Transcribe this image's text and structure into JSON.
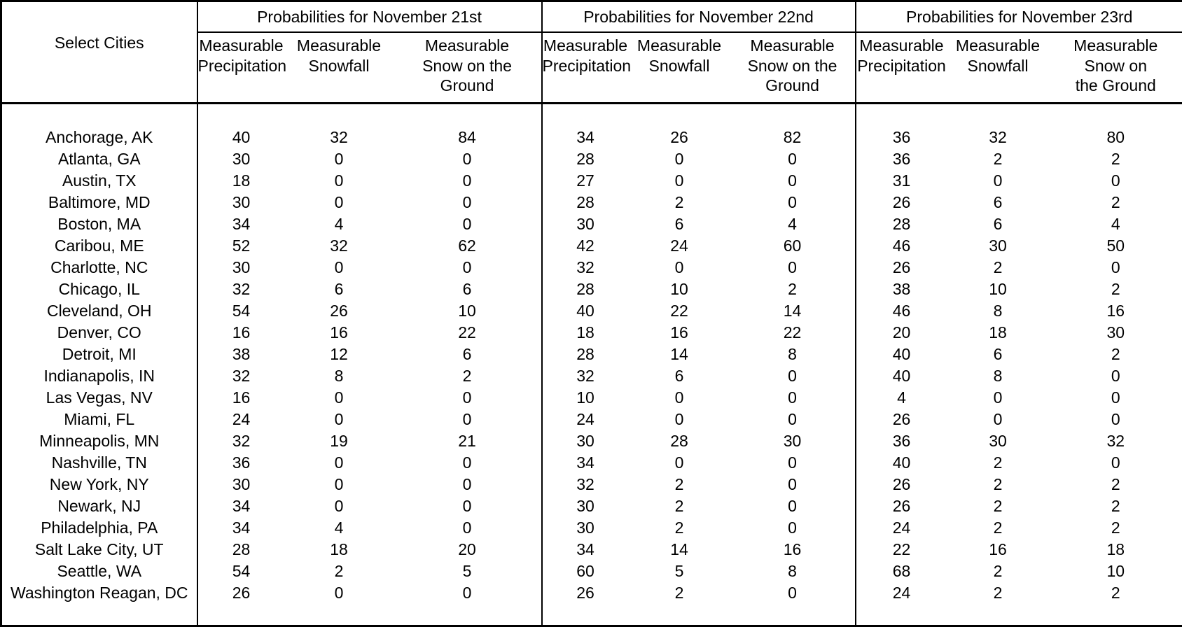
{
  "colors": {
    "text": "#000000",
    "background": "#ffffff",
    "border": "#000000"
  },
  "chart_data": {
    "type": "table",
    "row_header": "Select Cities",
    "column_groups": [
      {
        "title": "Probabilities for November 21st",
        "columns": [
          "Measurable\nPrecipitation",
          "Measurable\nSnowfall",
          "Measurable\nSnow on the\nGround"
        ]
      },
      {
        "title": "Probabilities for November 22nd",
        "columns": [
          "Measurable\nPrecipitation",
          "Measurable\nSnowfall",
          "Measurable\nSnow on the\nGround"
        ]
      },
      {
        "title": "Probabilities for November 23rd",
        "columns": [
          "Measurable\nPrecipitation",
          "Measurable\nSnowfall",
          "Measurable\nSnow on\nthe Ground"
        ]
      }
    ],
    "rows": [
      {
        "city": "Anchorage, AK",
        "values": [
          40,
          32,
          84,
          34,
          26,
          82,
          36,
          32,
          80
        ]
      },
      {
        "city": "Atlanta, GA",
        "values": [
          30,
          0,
          0,
          28,
          0,
          0,
          36,
          2,
          2
        ]
      },
      {
        "city": "Austin, TX",
        "values": [
          18,
          0,
          0,
          27,
          0,
          0,
          31,
          0,
          0
        ]
      },
      {
        "city": "Baltimore, MD",
        "values": [
          30,
          0,
          0,
          28,
          2,
          0,
          26,
          6,
          2
        ]
      },
      {
        "city": "Boston, MA",
        "values": [
          34,
          4,
          0,
          30,
          6,
          4,
          28,
          6,
          4
        ]
      },
      {
        "city": "Caribou, ME",
        "values": [
          52,
          32,
          62,
          42,
          24,
          60,
          46,
          30,
          50
        ]
      },
      {
        "city": "Charlotte, NC",
        "values": [
          30,
          0,
          0,
          32,
          0,
          0,
          26,
          2,
          0
        ]
      },
      {
        "city": "Chicago, IL",
        "values": [
          32,
          6,
          6,
          28,
          10,
          2,
          38,
          10,
          2
        ]
      },
      {
        "city": "Cleveland, OH",
        "values": [
          54,
          26,
          10,
          40,
          22,
          14,
          46,
          8,
          16
        ]
      },
      {
        "city": "Denver, CO",
        "values": [
          16,
          16,
          22,
          18,
          16,
          22,
          20,
          18,
          30
        ]
      },
      {
        "city": "Detroit, MI",
        "values": [
          38,
          12,
          6,
          28,
          14,
          8,
          40,
          6,
          2
        ]
      },
      {
        "city": "Indianapolis, IN",
        "values": [
          32,
          8,
          2,
          32,
          6,
          0,
          40,
          8,
          0
        ]
      },
      {
        "city": "Las Vegas, NV",
        "values": [
          16,
          0,
          0,
          10,
          0,
          0,
          4,
          0,
          0
        ]
      },
      {
        "city": "Miami, FL",
        "values": [
          24,
          0,
          0,
          24,
          0,
          0,
          26,
          0,
          0
        ]
      },
      {
        "city": "Minneapolis, MN",
        "values": [
          32,
          19,
          21,
          30,
          28,
          30,
          36,
          30,
          32
        ]
      },
      {
        "city": "Nashville, TN",
        "values": [
          36,
          0,
          0,
          34,
          0,
          0,
          40,
          2,
          0
        ]
      },
      {
        "city": "New York, NY",
        "values": [
          30,
          0,
          0,
          32,
          2,
          0,
          26,
          2,
          2
        ]
      },
      {
        "city": "Newark, NJ",
        "values": [
          34,
          0,
          0,
          30,
          2,
          0,
          26,
          2,
          2
        ]
      },
      {
        "city": "Philadelphia, PA",
        "values": [
          34,
          4,
          0,
          30,
          2,
          0,
          24,
          2,
          2
        ]
      },
      {
        "city": "Salt Lake City, UT",
        "values": [
          28,
          18,
          20,
          34,
          14,
          16,
          22,
          16,
          18
        ]
      },
      {
        "city": "Seattle, WA",
        "values": [
          54,
          2,
          5,
          60,
          5,
          8,
          68,
          2,
          10
        ]
      },
      {
        "city": "Washington Reagan, DC",
        "values": [
          26,
          0,
          0,
          26,
          2,
          0,
          24,
          2,
          2
        ]
      }
    ]
  }
}
